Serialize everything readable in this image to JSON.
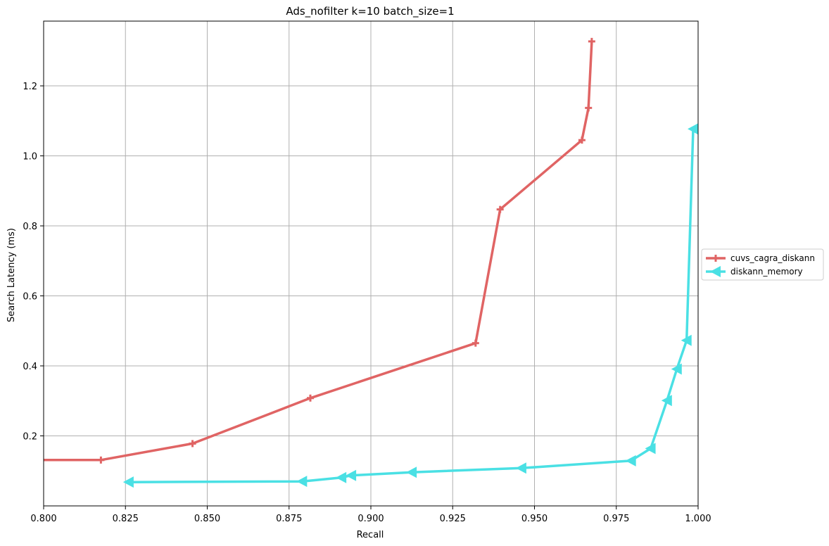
{
  "chart_data": {
    "type": "line",
    "title": "Ads_nofilter k=10 batch_size=1",
    "xlabel": "Recall",
    "ylabel": "Search Latency (ms)",
    "xlim": [
      0.8,
      1.0
    ],
    "ylim": [
      0.0,
      1.385
    ],
    "xticks": [
      "0.800",
      "0.825",
      "0.850",
      "0.875",
      "0.900",
      "0.925",
      "0.950",
      "0.975",
      "1.000"
    ],
    "yticks": [
      "0.2",
      "0.4",
      "0.6",
      "0.8",
      "1.0",
      "1.2"
    ],
    "grid": true,
    "legend_position": "center-right-outside",
    "series": [
      {
        "name": "cuvs_cagra_diskann",
        "color": "#e06464",
        "marker": "plus",
        "x": [
          0.789,
          0.8175,
          0.8455,
          0.8815,
          0.932,
          0.9395,
          0.9645,
          0.9665,
          0.9675
        ],
        "y": [
          0.131,
          0.131,
          0.178,
          0.308,
          0.465,
          0.847,
          1.045,
          1.137,
          1.327
        ]
      },
      {
        "name": "diskann_memory",
        "color": "#4ae0e4",
        "marker": "triangle-left",
        "x": [
          0.826,
          0.879,
          0.891,
          0.894,
          0.9125,
          0.946,
          0.9795,
          0.9855,
          0.9905,
          0.9935,
          0.9965,
          0.9985
        ],
        "y": [
          0.068,
          0.07,
          0.081,
          0.087,
          0.096,
          0.108,
          0.129,
          0.164,
          0.301,
          0.391,
          0.473,
          1.077
        ]
      }
    ]
  }
}
